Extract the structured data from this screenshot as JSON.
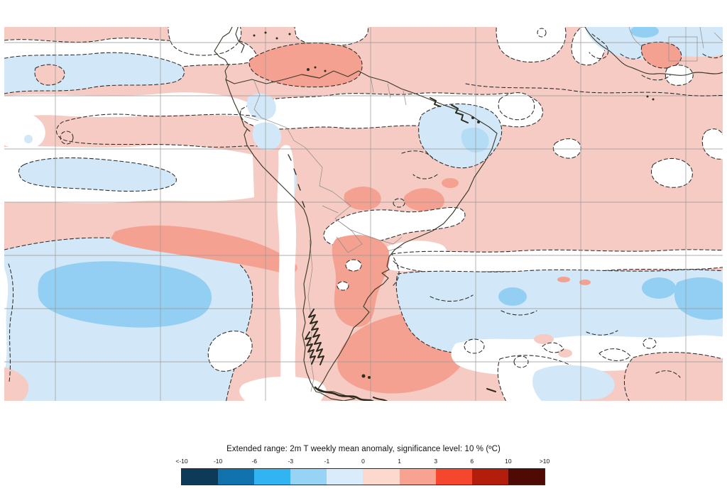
{
  "palette": {
    "map_pink": "#f6cbc3",
    "map_salmon": "#f5a191",
    "map_light_blue": "#d2e8f8",
    "map_mid_blue": "#93cff2",
    "grid_line": "#9a9a9a",
    "contour": "#2a2a2a"
  },
  "legend": {
    "title": "Extended range: 2m T weekly mean anomaly, significance level: 10 % (ºC)",
    "tick_labels": [
      "<-10",
      "-10",
      "-6",
      "-3",
      "-1",
      "0",
      "1",
      "3",
      "6",
      "10",
      ">10"
    ],
    "colors": [
      "#0e3a5a",
      "#1173ae",
      "#30b5f2",
      "#96d3f4",
      "#d8ecfb",
      "#fdd8cc",
      "#f8a391",
      "#f4472e",
      "#b31e0c",
      "#500a04"
    ]
  }
}
